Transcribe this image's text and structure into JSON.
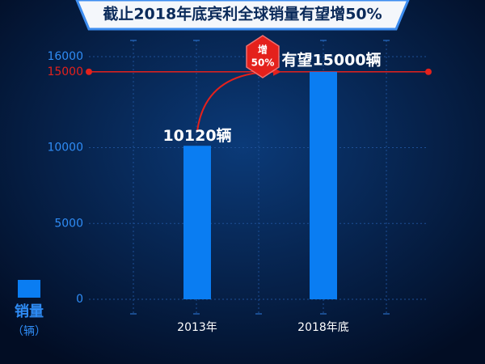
{
  "chart_data": {
    "type": "bar",
    "title": "截止2018年底宾利全球销量有望增50%",
    "categories": [
      "2013年",
      "2018年底"
    ],
    "series": [
      {
        "name": "销量",
        "color": "#0a7df2",
        "values": [
          10120,
          15000
        ],
        "value_labels": [
          "10120辆",
          "有望15000辆"
        ]
      }
    ],
    "y_unit": "（辆）",
    "ylim": [
      0,
      16000
    ],
    "yticks": [
      0,
      5000,
      10000,
      15000,
      16000
    ],
    "reference_line": {
      "value": 15000,
      "color": "#e4211c"
    },
    "annotation": [
      "增",
      "50%"
    ],
    "grid": true
  }
}
